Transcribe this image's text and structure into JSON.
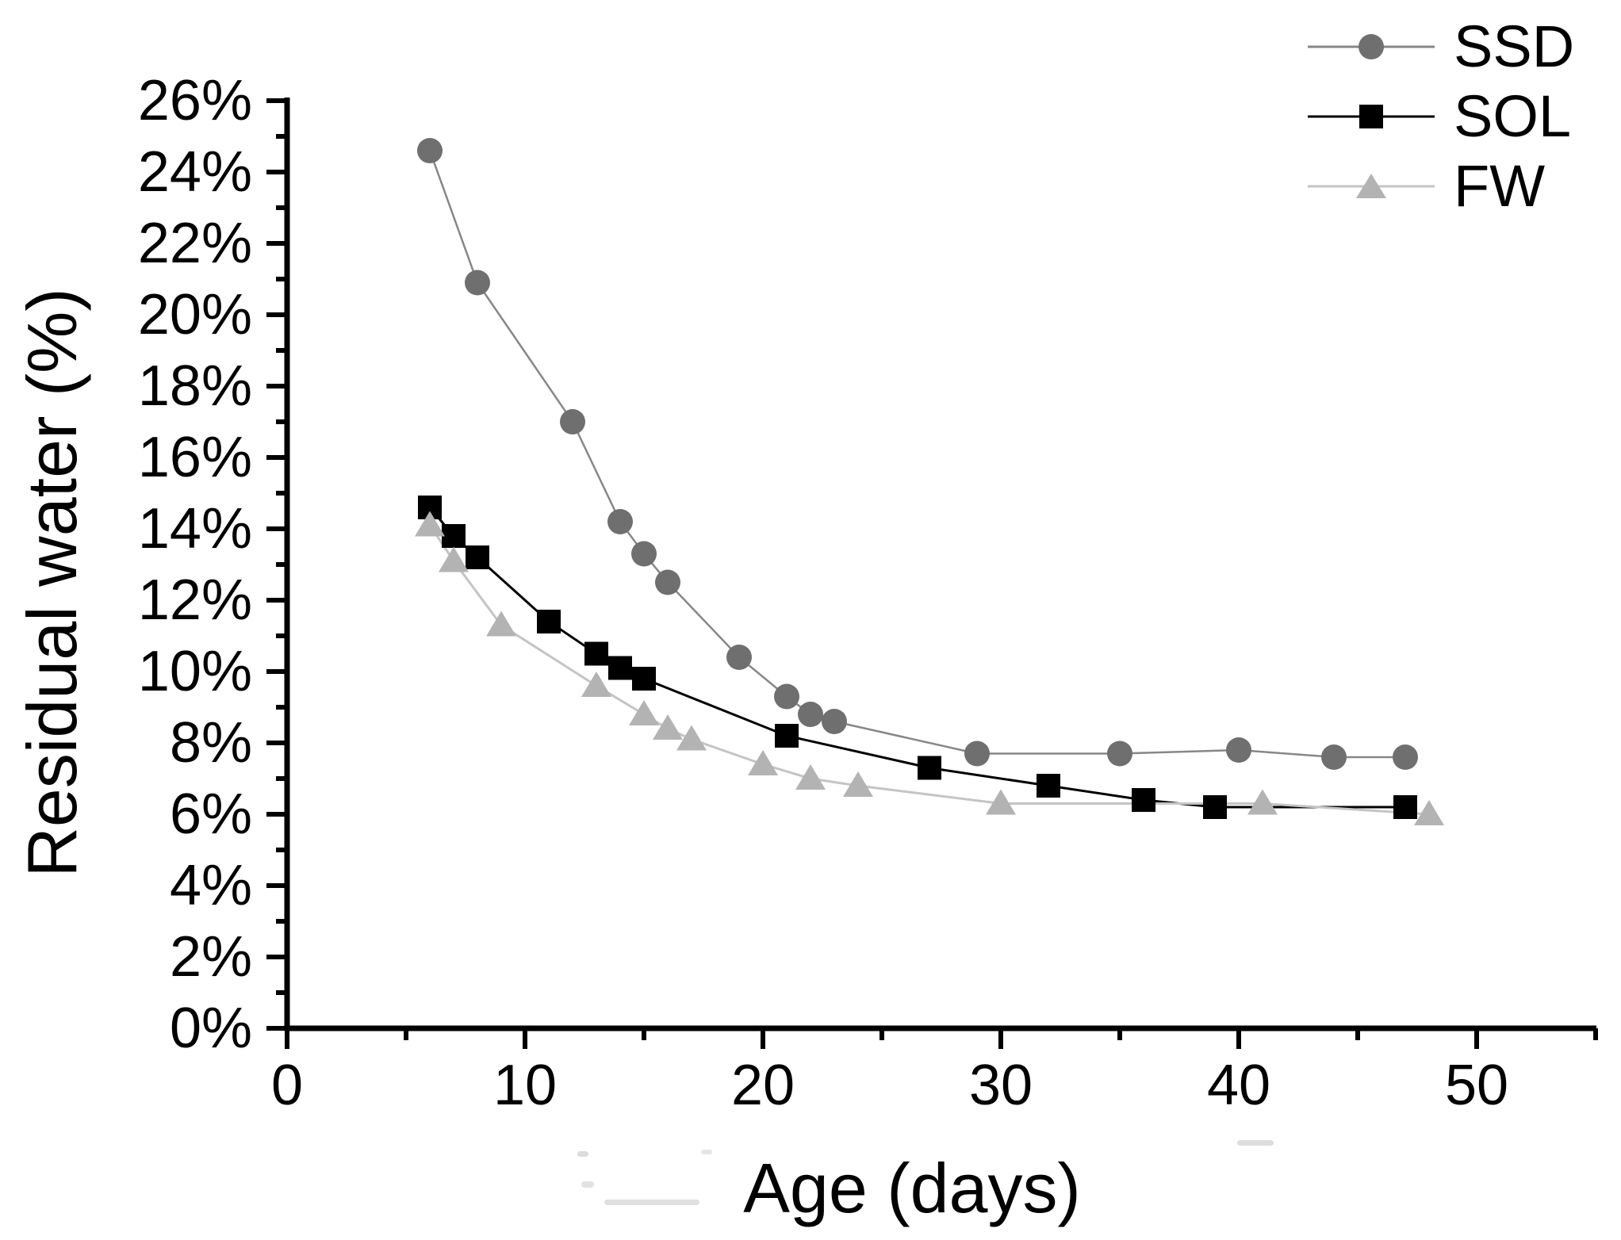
{
  "figure": {
    "background": "#ffffff",
    "axis_color": "#000000",
    "text_color": "#000000"
  },
  "chart_data": {
    "type": "line",
    "title": "",
    "xlabel": "Age (days)",
    "ylabel": "Residual water (%)",
    "xlim": [
      0,
      55
    ],
    "ylim": [
      0,
      26
    ],
    "grid": false,
    "legend_position": "top-right",
    "x_major_ticks": [
      0,
      10,
      20,
      30,
      40,
      50
    ],
    "x_tick_labels": [
      "0",
      "10",
      "20",
      "30",
      "40",
      "50"
    ],
    "x_minor_ticks": [
      5,
      15,
      25,
      35,
      45,
      55
    ],
    "y_major_ticks": [
      0,
      2,
      4,
      6,
      8,
      10,
      12,
      14,
      16,
      18,
      20,
      22,
      24,
      26
    ],
    "y_tick_labels": [
      "0%",
      "2%",
      "4%",
      "6%",
      "8%",
      "10%",
      "12%",
      "14%",
      "16%",
      "18%",
      "20%",
      "22%",
      "24%",
      "26%"
    ],
    "y_minor_ticks": [
      1,
      3,
      5,
      7,
      9,
      11,
      13,
      15,
      17,
      19,
      21,
      23,
      25
    ],
    "series": [
      {
        "name": "SSD",
        "marker": "circle",
        "marker_color": "#6f6f6f",
        "line_color": "#878787",
        "line_width": 2.5,
        "x": [
          6,
          8,
          12,
          14,
          15,
          16,
          19,
          21,
          22,
          23,
          29,
          35,
          40,
          44,
          47
        ],
        "y": [
          24.6,
          20.9,
          17.0,
          14.2,
          13.3,
          12.5,
          10.4,
          9.3,
          8.8,
          8.6,
          7.7,
          7.7,
          7.8,
          7.6,
          7.6
        ]
      },
      {
        "name": "SOL",
        "marker": "square",
        "marker_color": "#000000",
        "line_color": "#000000",
        "line_width": 3,
        "x": [
          6,
          7,
          8,
          11,
          13,
          14,
          15,
          21,
          27,
          32,
          36,
          39,
          47
        ],
        "y": [
          14.6,
          13.8,
          13.2,
          11.4,
          10.5,
          10.1,
          9.8,
          8.2,
          7.3,
          6.8,
          6.4,
          6.2,
          6.2
        ]
      },
      {
        "name": "FW",
        "marker": "triangle",
        "marker_color": "#b3b3b3",
        "line_color": "#c4c4c4",
        "line_width": 3,
        "x": [
          6,
          7,
          9,
          13,
          15,
          16,
          17,
          20,
          22,
          24,
          30,
          41,
          48
        ],
        "y": [
          14.1,
          13.1,
          11.3,
          9.6,
          8.8,
          8.4,
          8.1,
          7.4,
          7.0,
          6.8,
          6.3,
          6.3,
          6.0
        ]
      }
    ]
  }
}
